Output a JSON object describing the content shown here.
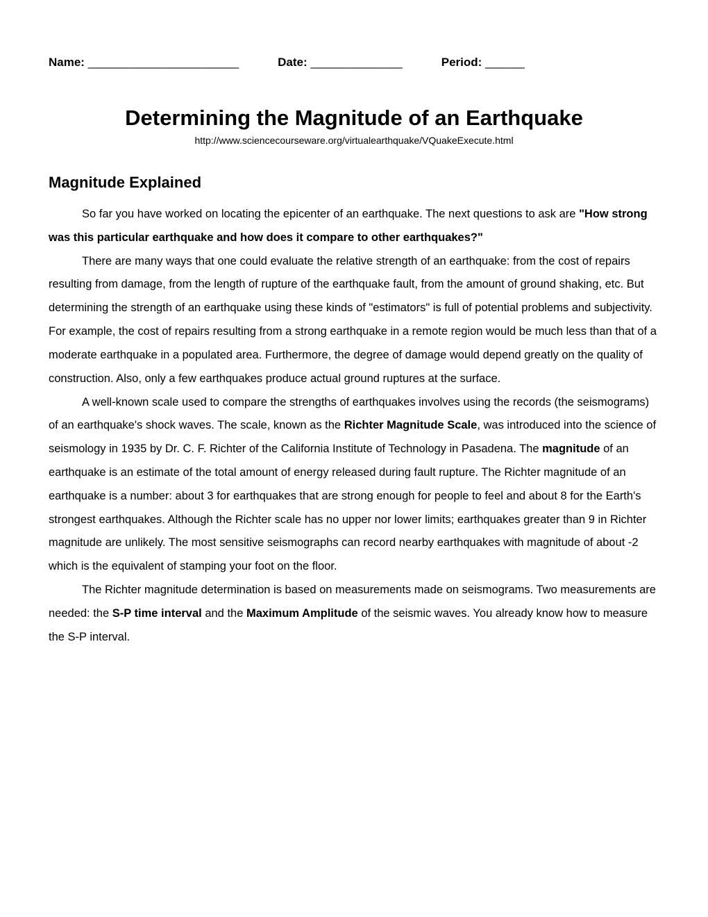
{
  "header": {
    "name_label": "Name:",
    "name_blank": " _______________________",
    "date_label": "Date:",
    "date_blank": " ______________",
    "period_label": "Period:",
    "period_blank": " ______"
  },
  "title": "Determining the Magnitude of an Earthquake",
  "url": "http://www.sciencecourseware.org/virtualearthquake/VQuakeExecute.html",
  "section_heading": "Magnitude Explained",
  "p1_a": "So far you have worked on locating the epicenter of an earthquake. The next questions to ask are ",
  "p1_b": "\"How strong was this particular earthquake and how does it compare to other earthquakes?\"",
  "p2": "There are many ways that one could evaluate the relative strength of an earthquake: from the cost of repairs resulting from damage, from the length of rupture of the earthquake fault, from the amount of ground shaking, etc. But determining the strength of an earthquake using these kinds of \"estimators\" is full of potential problems and subjectivity. For example, the cost of repairs resulting from a strong earthquake in a remote region would be much less than that of a moderate earthquake in a populated area. Furthermore, the degree of damage would depend greatly on the quality of construction. Also, only a few earthquakes produce actual ground ruptures at the surface.",
  "p3_a": "A well-known scale used to compare the strengths of earthquakes involves using the records (the seismograms) of an earthquake's shock waves. The scale, known as the ",
  "p3_b": "Richter Magnitude Scale",
  "p3_c": ", was introduced into the science of seismology in 1935 by Dr. C. F. Richter of the California Institute of Technology in Pasadena. The ",
  "p3_d": "magnitude",
  "p3_e": " of an earthquake is an estimate of the total amount of energy released during fault rupture. The Richter magnitude of an earthquake is a number: about 3 for earthquakes that are strong enough for people to feel and about 8 for the Earth's strongest earthquakes. Although the Richter scale has no upper nor lower limits; earthquakes greater than 9 in Richter magnitude are unlikely. The most sensitive seismographs can record nearby earthquakes with magnitude of about -2 which is the equivalent of stamping your foot on the floor.",
  "p4_a": "The Richter magnitude determination is based on measurements made on seismograms. Two measurements are needed: the ",
  "p4_b": "S-P time interval",
  "p4_c": " and the ",
  "p4_d": "Maximum Amplitude",
  "p4_e": " of the seismic waves. You already know how to measure the S-P interval."
}
